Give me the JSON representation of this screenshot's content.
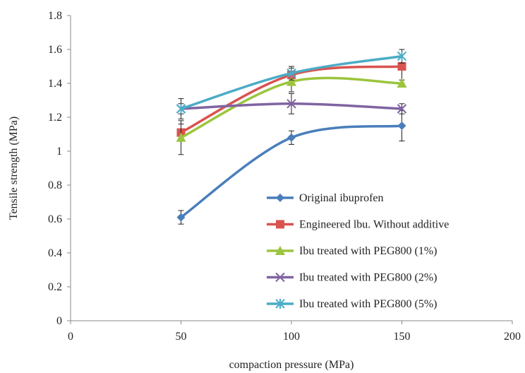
{
  "chart_data": {
    "type": "line",
    "title": "",
    "xlabel": "compaction pressure (MPa)",
    "ylabel": "Tensile strength (MPa)",
    "xlim": [
      0,
      200
    ],
    "ylim": [
      0,
      1.8
    ],
    "x_ticks": [
      0,
      50,
      100,
      150,
      200
    ],
    "y_ticks": [
      0,
      0.2,
      0.4,
      0.6,
      0.8,
      1,
      1.2,
      1.4,
      1.6,
      1.8
    ],
    "x_tick_labels": [
      "0",
      "50",
      "100",
      "150",
      "200"
    ],
    "y_tick_labels": [
      "0",
      "0.2",
      "0.4",
      "0.6",
      "0.8",
      "1",
      "1.2",
      "1.4",
      "1.6",
      "1.8"
    ],
    "grid": false,
    "legend_position": "bottom-right",
    "x": [
      50,
      100,
      150
    ],
    "series": [
      {
        "name": "Original ibuprofen",
        "values": [
          0.61,
          1.08,
          1.15
        ],
        "errors": [
          0.04,
          0.04,
          0.09
        ],
        "color": "#4a7ebb",
        "marker": "diamond"
      },
      {
        "name": "Engineered lbu. Without additive",
        "values": [
          1.11,
          1.45,
          1.5
        ],
        "errors": [
          0.05,
          0.04,
          0.1
        ],
        "color": "#d9534f",
        "marker": "square"
      },
      {
        "name": "Ibu treated with PEG800 (1%)",
        "values": [
          1.08,
          1.41,
          1.4
        ],
        "errors": [
          0.1,
          0.06,
          0.02
        ],
        "color": "#9bc53d",
        "marker": "triangle"
      },
      {
        "name": "Ibu treated with PEG800 (2%)",
        "values": [
          1.25,
          1.28,
          1.25
        ],
        "errors": [
          0.03,
          0.06,
          0.03
        ],
        "color": "#8064a2",
        "marker": "x"
      },
      {
        "name": "Ibu treated with PEG800 (5%)",
        "values": [
          1.25,
          1.46,
          1.56
        ],
        "errors": [
          0.06,
          0.04,
          0.04
        ],
        "color": "#4bacc6",
        "marker": "star"
      }
    ]
  }
}
